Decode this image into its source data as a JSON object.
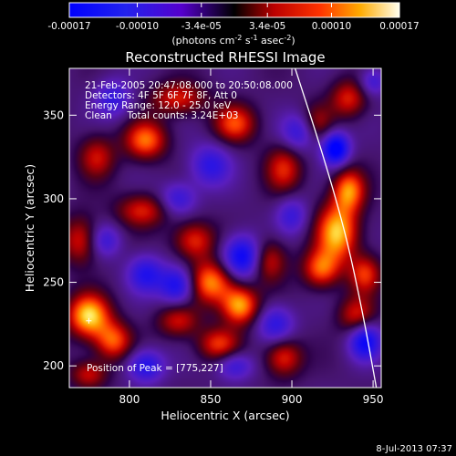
{
  "chart_data": {
    "type": "heatmap",
    "title": "Reconstructed RHESSI Image",
    "xlabel": "Heliocentric X (arcsec)",
    "ylabel": "Heliocentric Y (arcsec)",
    "xlim": [
      763,
      955
    ],
    "ylim": [
      187,
      378
    ],
    "x_ticks": [
      800,
      850,
      900,
      950
    ],
    "y_ticks": [
      200,
      250,
      300,
      350
    ],
    "colorbar": {
      "min": -0.00017,
      "max": 0.00017,
      "tick_values": [
        -0.00017,
        -0.0001,
        -3.4e-05,
        3.4e-05,
        0.0001,
        0.00017
      ],
      "tick_labels": [
        "-0.00017",
        "-0.00010",
        "-3.4e-05",
        "3.4e-05",
        "0.00010",
        "0.00017"
      ],
      "unit_label": {
        "prefix": "(photons cm",
        "sup1": "-2",
        "mid1": " s",
        "sup2": "-1",
        "mid2": " asec",
        "sup3": "-2",
        "suffix": ")"
      }
    },
    "annotations": [
      "21-Feb-2005 20:47:08.000 to 20:50:08.000",
      "Detectors: 4F 5F 6F 7F 8F, Att 0",
      "Energy Range: 12.0 - 25.0 keV",
      "Clean     Total counts: 3.24E+03"
    ],
    "peak_label": "Position of Peak = [775,227]",
    "peak_position": [
      775,
      227
    ],
    "limb_curve": [
      [
        902,
        378
      ],
      [
        918,
        330
      ],
      [
        933,
        280
      ],
      [
        944,
        230
      ],
      [
        952,
        187
      ]
    ],
    "blobs": [
      {
        "x": 775,
        "y": 230,
        "v": 1.0,
        "sx": 9,
        "sy": 9
      },
      {
        "x": 790,
        "y": 215,
        "v": 0.7,
        "sx": 8,
        "sy": 8
      },
      {
        "x": 810,
        "y": 335,
        "v": 0.75,
        "sx": 9,
        "sy": 8
      },
      {
        "x": 830,
        "y": 360,
        "v": 0.55,
        "sx": 12,
        "sy": 7
      },
      {
        "x": 780,
        "y": 325,
        "v": 0.5,
        "sx": 8,
        "sy": 9
      },
      {
        "x": 865,
        "y": 345,
        "v": 0.65,
        "sx": 9,
        "sy": 8
      },
      {
        "x": 895,
        "y": 318,
        "v": 0.55,
        "sx": 8,
        "sy": 10
      },
      {
        "x": 808,
        "y": 293,
        "v": 0.55,
        "sx": 11,
        "sy": 7
      },
      {
        "x": 840,
        "y": 275,
        "v": 0.6,
        "sx": 9,
        "sy": 8
      },
      {
        "x": 850,
        "y": 250,
        "v": 0.85,
        "sx": 10,
        "sy": 9
      },
      {
        "x": 868,
        "y": 236,
        "v": 0.9,
        "sx": 8,
        "sy": 8
      },
      {
        "x": 855,
        "y": 213,
        "v": 0.6,
        "sx": 9,
        "sy": 7
      },
      {
        "x": 830,
        "y": 227,
        "v": 0.5,
        "sx": 9,
        "sy": 7
      },
      {
        "x": 885,
        "y": 263,
        "v": 0.6,
        "sx": 8,
        "sy": 9
      },
      {
        "x": 895,
        "y": 205,
        "v": 0.6,
        "sx": 8,
        "sy": 8
      },
      {
        "x": 928,
        "y": 280,
        "v": 0.95,
        "sx": 9,
        "sy": 12
      },
      {
        "x": 935,
        "y": 305,
        "v": 0.8,
        "sx": 7,
        "sy": 9
      },
      {
        "x": 918,
        "y": 258,
        "v": 0.7,
        "sx": 8,
        "sy": 8
      },
      {
        "x": 945,
        "y": 255,
        "v": 0.6,
        "sx": 7,
        "sy": 8
      },
      {
        "x": 940,
        "y": 230,
        "v": 0.55,
        "sx": 8,
        "sy": 8
      },
      {
        "x": 935,
        "y": 360,
        "v": 0.55,
        "sx": 8,
        "sy": 8
      },
      {
        "x": 915,
        "y": 345,
        "v": 0.45,
        "sx": 7,
        "sy": 8
      },
      {
        "x": 770,
        "y": 275,
        "v": 0.55,
        "sx": 8,
        "sy": 10
      },
      {
        "x": 775,
        "y": 195,
        "v": 0.5,
        "sx": 8,
        "sy": 6
      },
      {
        "x": 927,
        "y": 330,
        "v": -1.0,
        "sx": 6,
        "sy": 7
      },
      {
        "x": 870,
        "y": 265,
        "v": -0.9,
        "sx": 9,
        "sy": 9
      },
      {
        "x": 830,
        "y": 248,
        "v": -0.75,
        "sx": 8,
        "sy": 8
      },
      {
        "x": 810,
        "y": 255,
        "v": -0.6,
        "sx": 8,
        "sy": 8
      },
      {
        "x": 810,
        "y": 200,
        "v": -0.65,
        "sx": 8,
        "sy": 7
      },
      {
        "x": 850,
        "y": 320,
        "v": -0.55,
        "sx": 9,
        "sy": 9
      },
      {
        "x": 905,
        "y": 340,
        "v": -0.55,
        "sx": 8,
        "sy": 8
      },
      {
        "x": 945,
        "y": 215,
        "v": -0.8,
        "sx": 7,
        "sy": 8
      },
      {
        "x": 890,
        "y": 225,
        "v": -0.55,
        "sx": 8,
        "sy": 8
      },
      {
        "x": 790,
        "y": 360,
        "v": -0.5,
        "sx": 8,
        "sy": 8
      },
      {
        "x": 830,
        "y": 300,
        "v": -0.5,
        "sx": 8,
        "sy": 7
      },
      {
        "x": 900,
        "y": 290,
        "v": -0.45,
        "sx": 7,
        "sy": 8
      },
      {
        "x": 865,
        "y": 200,
        "v": -0.5,
        "sx": 8,
        "sy": 6
      },
      {
        "x": 785,
        "y": 275,
        "v": -0.45,
        "sx": 7,
        "sy": 7
      },
      {
        "x": 950,
        "y": 370,
        "v": -0.45,
        "sx": 6,
        "sy": 6
      }
    ]
  },
  "footer_timestamp": "8-Jul-2013 07:37"
}
